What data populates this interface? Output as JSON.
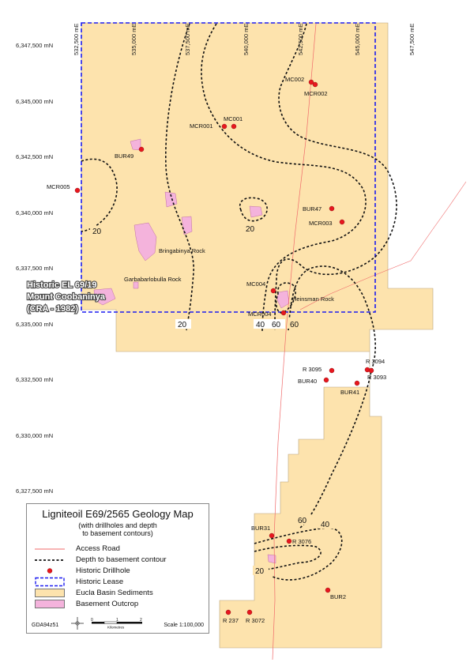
{
  "axes": {
    "easting": [
      "532,500 mE",
      "535,000 mE",
      "537,500 mE",
      "540,000 mE",
      "542,500 mE",
      "545,000 mE",
      "547,500 mE"
    ],
    "northing": [
      "6,347,500 mN",
      "6,345,000 mN",
      "6,342,500 mN",
      "6,340,000 mN",
      "6,337,500 mN",
      "6,335,000 mN",
      "6,332,500 mN",
      "6,330,000 mN",
      "6,327,500 mN"
    ]
  },
  "drillholes": [
    "MC002",
    "MCR002",
    "MC001",
    "MCR001",
    "BUR49",
    "MCR005",
    "BUR47",
    "MCR003",
    "MC004",
    "MCR004",
    "R 3095",
    "BUR40",
    "BUR41",
    "R 3094",
    "R 3093",
    "BUR31",
    "R 3076",
    "BUR2",
    "R 237",
    "R 3072"
  ],
  "features": {
    "bringabinya": "Bringabinya Rock",
    "garbabarlobulla": "Garbabarlobulla Rock",
    "heinsman": "Heinsman Rock",
    "lease_line1": "Historic EL 69/19",
    "lease_line2": "Mount Coobaninya",
    "lease_line3": "(CRA - 1982)"
  },
  "contours": [
    "20",
    "20",
    "20",
    "40",
    "60",
    "60",
    "60",
    "40",
    "20"
  ],
  "legend": {
    "title": "Ligniteoil E69/2565 Geology Map",
    "subtitle_1": "(with drillholes and depth",
    "subtitle_2": "to basement contours)",
    "access_road": "Access Road",
    "depth_contour": "Depth to basement contour",
    "drillhole": "Historic Drillhole",
    "lease": "Historic Lease",
    "eucla": "Eucla Basin Sediments",
    "outcrop": "Basement Outcrop",
    "datum": "GDA94z51",
    "scale_label": "Scale 1:100,000",
    "scale_km": "Kilometres",
    "scale_ticks": [
      "0",
      "1",
      "2"
    ]
  },
  "colors": {
    "sediment": "#fde3ad",
    "outcrop": "#f4b3dc",
    "lease": "#1c1cf0",
    "road": "#f06a6a",
    "drillhole": "#e8161e"
  }
}
